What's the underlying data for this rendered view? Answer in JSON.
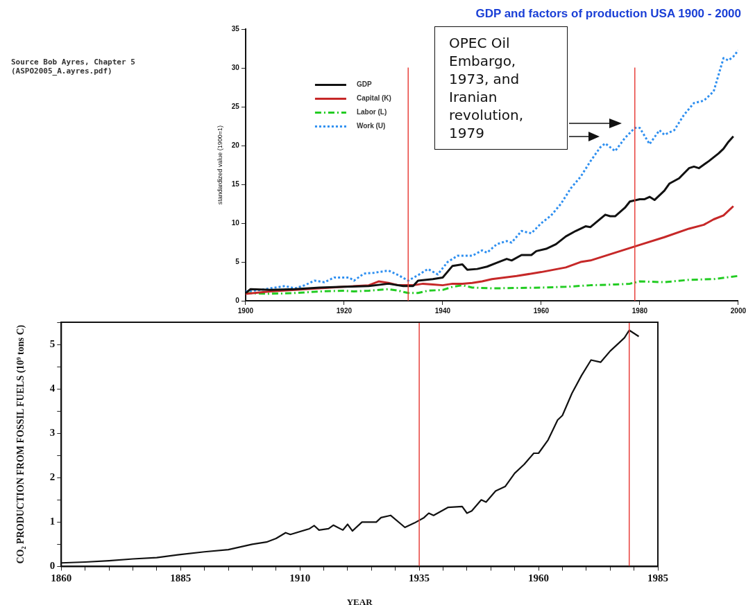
{
  "chart_data": [
    {
      "type": "line",
      "title": "GDP and factors of production USA 1900 - 2000",
      "ylabel": "standardized value (1900=1)",
      "annotations": [
        "Source  Bob Ayres, Chapter 5 (ASPO2005_A.ayres.pdf)",
        "OPEC Oil Embargo, 1973, and Iranian revolution, 1979"
      ],
      "xlim": [
        1900,
        2000
      ],
      "xticks": [
        1900,
        1920,
        1940,
        1960,
        1980,
        2000
      ],
      "ylim": [
        0,
        35
      ],
      "yticks": [
        0,
        5,
        10,
        15,
        20,
        25,
        30,
        35
      ],
      "grid": false,
      "legend": "top left",
      "marker": "none",
      "ref_lines": [
        {
          "axis": "x",
          "value": 1933,
          "color": "#e8413c"
        },
        {
          "axis": "x",
          "value": 1979,
          "color": "#e8413c"
        }
      ],
      "series": [
        {
          "name": "GDP",
          "color": "#111111",
          "line_style": "solid",
          "x": [
            1900,
            1901,
            1905,
            1910,
            1915,
            1920,
            1925,
            1929,
            1932,
            1934,
            1935,
            1938,
            1940,
            1942,
            1944,
            1945,
            1947,
            1949,
            1951,
            1953,
            1954,
            1956,
            1958,
            1959,
            1961,
            1963,
            1965,
            1967,
            1969,
            1970,
            1973,
            1974,
            1975,
            1977,
            1978,
            1980,
            1981,
            1982,
            1983,
            1985,
            1986,
            1988,
            1990,
            1991,
            1992,
            1994,
            1996,
            1997,
            1998,
            1999
          ],
          "values": [
            1,
            1.5,
            1.4,
            1.5,
            1.7,
            1.8,
            1.9,
            2.2,
            1.9,
            1.9,
            2.6,
            2.8,
            3,
            4.5,
            4.7,
            4,
            4.1,
            4.4,
            4.9,
            5.4,
            5.2,
            5.9,
            5.9,
            6.4,
            6.7,
            7.3,
            8.3,
            9,
            9.6,
            9.5,
            11.1,
            10.9,
            10.9,
            12,
            12.8,
            13.1,
            13.1,
            13.4,
            13,
            14.2,
            15.1,
            15.8,
            17.1,
            17.3,
            17.1,
            18,
            19,
            19.6,
            20.5,
            21.2
          ]
        },
        {
          "name": "Capital (K)",
          "color": "#c62828",
          "line_style": "solid",
          "x": [
            1900,
            1905,
            1910,
            1915,
            1920,
            1925,
            1927,
            1929,
            1931,
            1934,
            1936,
            1938,
            1940,
            1942,
            1944,
            1946,
            1948,
            1950,
            1955,
            1960,
            1965,
            1968,
            1970,
            1975,
            1977,
            1980,
            1985,
            1990,
            1993,
            1995,
            1997,
            1999
          ],
          "values": [
            0.9,
            1.2,
            1.4,
            1.6,
            1.8,
            2,
            2.5,
            2.3,
            2,
            2,
            2.2,
            2.1,
            2,
            2.2,
            2.2,
            2.3,
            2.5,
            2.8,
            3.2,
            3.7,
            4.3,
            5,
            5.2,
            6.2,
            6.6,
            7.2,
            8.2,
            9.3,
            9.8,
            10.5,
            11,
            12.2
          ]
        },
        {
          "name": "Labor (L)",
          "color": "#22cc22",
          "line_style": "dashed",
          "x": [
            1900,
            1905,
            1910,
            1915,
            1920,
            1922,
            1925,
            1929,
            1931,
            1933,
            1935,
            1937,
            1940,
            1942,
            1944,
            1946,
            1950,
            1960,
            1965,
            1970,
            1975,
            1978,
            1980,
            1985,
            1990,
            1995,
            2000
          ],
          "values": [
            1,
            0.9,
            1,
            1.2,
            1.3,
            1.2,
            1.3,
            1.5,
            1.3,
            1,
            1,
            1.3,
            1.4,
            1.8,
            2,
            1.7,
            1.6,
            1.7,
            1.8,
            2,
            2.1,
            2.2,
            2.5,
            2.4,
            2.7,
            2.8,
            3.2
          ]
        },
        {
          "name": "Work (U)",
          "color": "#2e8ff0",
          "line_style": "dotted",
          "x": [
            1900,
            1903,
            1906,
            1908,
            1910,
            1912,
            1914,
            1916,
            1918,
            1921,
            1922,
            1924,
            1926,
            1927,
            1929,
            1931,
            1933,
            1935,
            1937,
            1939,
            1941,
            1943,
            1946,
            1948,
            1949,
            1951,
            1953,
            1954,
            1956,
            1958,
            1960,
            1962,
            1964,
            1966,
            1968,
            1970,
            1972,
            1973,
            1975,
            1977,
            1979,
            1980,
            1982,
            1984,
            1985,
            1987,
            1989,
            1991,
            1993,
            1995,
            1997,
            1998,
            1999,
            2000
          ],
          "values": [
            1.2,
            1.4,
            1.7,
            1.9,
            1.6,
            2,
            2.6,
            2.4,
            3,
            3,
            2.6,
            3.5,
            3.6,
            3.7,
            3.9,
            3.3,
            2.6,
            3.3,
            4.1,
            3.4,
            5,
            5.8,
            5.8,
            6.5,
            6.2,
            7.3,
            7.7,
            7.5,
            9,
            8.7,
            10,
            11,
            12.5,
            14.5,
            16,
            18,
            19.8,
            20.3,
            19.3,
            21,
            22.3,
            22.3,
            20.2,
            22,
            21.4,
            22,
            24,
            25.5,
            25.8,
            27,
            31.3,
            31,
            31.5,
            32.3
          ]
        }
      ]
    },
    {
      "type": "line",
      "xlabel": "YEAR",
      "ylabel": "CO₂ PRODUCTION FROM FOSSIL FUELS (10⁹ tons C)",
      "xlim": [
        1860,
        1985
      ],
      "xticks": [
        1860,
        {
          "value": 1865,
          "label": null
        },
        {
          "value": 1870,
          "label": null
        },
        {
          "value": 1875,
          "label": null
        },
        {
          "value": 1880,
          "label": null
        },
        1885,
        {
          "value": 1890,
          "label": null
        },
        {
          "value": 1895,
          "label": null
        },
        {
          "value": 1900,
          "label": null
        },
        {
          "value": 1905,
          "label": null
        },
        1910,
        {
          "value": 1915,
          "label": null
        },
        {
          "value": 1920,
          "label": null
        },
        {
          "value": 1925,
          "label": null
        },
        {
          "value": 1930,
          "label": null
        },
        1935,
        {
          "value": 1940,
          "label": null
        },
        {
          "value": 1945,
          "label": null
        },
        {
          "value": 1950,
          "label": null
        },
        {
          "value": 1955,
          "label": null
        },
        1960,
        {
          "value": 1965,
          "label": null
        },
        {
          "value": 1970,
          "label": null
        },
        {
          "value": 1975,
          "label": null
        },
        {
          "value": 1980,
          "label": null
        },
        1985
      ],
      "ylim": [
        0,
        5.5
      ],
      "yticks": [
        0,
        {
          "value": 0.5,
          "label": null
        },
        1,
        {
          "value": 1.5,
          "label": null
        },
        2,
        {
          "value": 2.5,
          "label": null
        },
        3,
        {
          "value": 3.5,
          "label": null
        },
        4,
        {
          "value": 4.5,
          "label": null
        },
        5,
        {
          "value": 5.5,
          "label": null
        }
      ],
      "grid": false,
      "marker": "none",
      "ref_lines": [
        {
          "axis": "x",
          "value": 1935,
          "color": "#e8413c"
        },
        {
          "axis": "x",
          "value": 1979,
          "color": "#e8413c"
        }
      ],
      "series": [
        {
          "color": "#111111",
          "line_style": "solid",
          "x": [
            1860,
            1865,
            1870,
            1875,
            1880,
            1885,
            1890,
            1895,
            1900,
            1903,
            1905,
            1907,
            1908,
            1912,
            1913,
            1914,
            1916,
            1917,
            1919,
            1920,
            1921,
            1923,
            1926,
            1927,
            1929,
            1932,
            1934,
            1936,
            1937,
            1938,
            1941,
            1944,
            1945,
            1946,
            1948,
            1949,
            1951,
            1953,
            1955,
            1957,
            1959,
            1960,
            1962,
            1964,
            1965,
            1967,
            1969,
            1971,
            1973,
            1975,
            1977,
            1978,
            1979,
            1981
          ],
          "values": [
            0.08,
            0.1,
            0.13,
            0.17,
            0.2,
            0.27,
            0.33,
            0.38,
            0.5,
            0.55,
            0.63,
            0.76,
            0.72,
            0.85,
            0.92,
            0.82,
            0.85,
            0.93,
            0.82,
            0.95,
            0.8,
            1,
            1,
            1.1,
            1.15,
            0.88,
            0.98,
            1.1,
            1.2,
            1.15,
            1.33,
            1.35,
            1.2,
            1.25,
            1.5,
            1.45,
            1.7,
            1.8,
            2.1,
            2.3,
            2.55,
            2.55,
            2.85,
            3.3,
            3.4,
            3.9,
            4.3,
            4.65,
            4.6,
            4.85,
            5.05,
            5.15,
            5.32,
            5.18
          ]
        }
      ]
    }
  ]
}
